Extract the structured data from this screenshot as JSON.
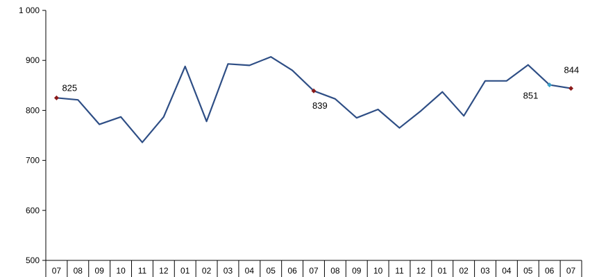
{
  "chart_data": {
    "type": "line",
    "title": "",
    "xlabel": "",
    "ylabel": "",
    "ylim": [
      500,
      1000
    ],
    "yticks": [
      500,
      600,
      700,
      800,
      900,
      1000
    ],
    "ytick_labels": [
      "500",
      "600",
      "700",
      "800",
      "900",
      "1 000"
    ],
    "grid": false,
    "legend": "none",
    "categories": [
      "07",
      "08",
      "09",
      "10",
      "11",
      "12",
      "01",
      "02",
      "03",
      "04",
      "05",
      "06",
      "07",
      "08",
      "09",
      "10",
      "11",
      "12",
      "01",
      "02",
      "03",
      "04",
      "05",
      "06",
      "07"
    ],
    "series": [
      {
        "color": "#2e4e85",
        "values": [
          825,
          821,
          772,
          787,
          736,
          787,
          888,
          778,
          893,
          890,
          907,
          880,
          839,
          823,
          785,
          802,
          765,
          799,
          837,
          789,
          859,
          859,
          891,
          851,
          844
        ]
      }
    ],
    "data_labels": [
      {
        "index": 0,
        "text": "825",
        "marker_color": "#8b1a1a"
      },
      {
        "index": 12,
        "text": "839",
        "marker_color": "#8b1a1a"
      },
      {
        "index": 23,
        "text": "851",
        "marker_color": "#3aa0c8"
      },
      {
        "index": 24,
        "text": "844",
        "marker_color": "#8b1a1a"
      }
    ]
  }
}
